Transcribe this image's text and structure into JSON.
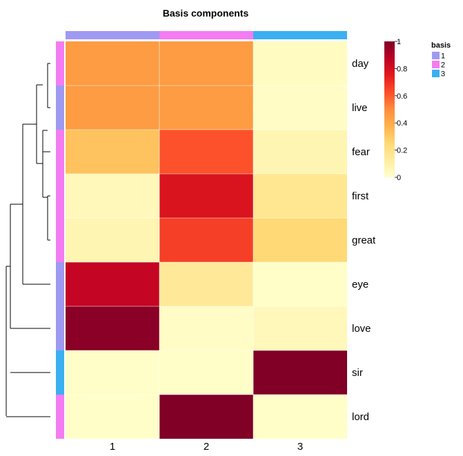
{
  "chart_data": {
    "type": "heatmap",
    "title": "Basis components",
    "columns": [
      "1",
      "2",
      "3"
    ],
    "rows": [
      "day",
      "live",
      "fear",
      "first",
      "great",
      "eye",
      "love",
      "sir",
      "lord"
    ],
    "values": [
      [
        0.45,
        0.45,
        0.03
      ],
      [
        0.45,
        0.45,
        0.02
      ],
      [
        0.32,
        0.62,
        0.07
      ],
      [
        0.05,
        0.78,
        0.17
      ],
      [
        0.07,
        0.66,
        0.25
      ],
      [
        0.85,
        0.15,
        0.01
      ],
      [
        0.98,
        0.02,
        0.05
      ],
      [
        0.01,
        0.01,
        1.0
      ],
      [
        0.01,
        1.0,
        0.01
      ]
    ],
    "column_basis": [
      "1",
      "2",
      "3"
    ],
    "row_basis": [
      "2",
      "1",
      "2",
      "2",
      "2",
      "1",
      "1",
      "3",
      "2"
    ],
    "colorbar": {
      "min": 0,
      "max": 1,
      "ticks": [
        "1",
        "0.8",
        "0.6",
        "0.4",
        "0.2",
        "0"
      ],
      "colors": [
        "#FFFFCC",
        "#FFEDA0",
        "#FED976",
        "#FEB24C",
        "#FD8D3C",
        "#FC4E2A",
        "#E31A1C",
        "#BD0026",
        "#800026"
      ]
    },
    "legend": {
      "title": "basis",
      "position": "top-right",
      "items": [
        {
          "label": "1",
          "color": "#9E9AF2"
        },
        {
          "label": "2",
          "color": "#F47CF2"
        },
        {
          "label": "3",
          "color": "#3AB0F1"
        }
      ]
    },
    "dendrogram": "rows"
  }
}
